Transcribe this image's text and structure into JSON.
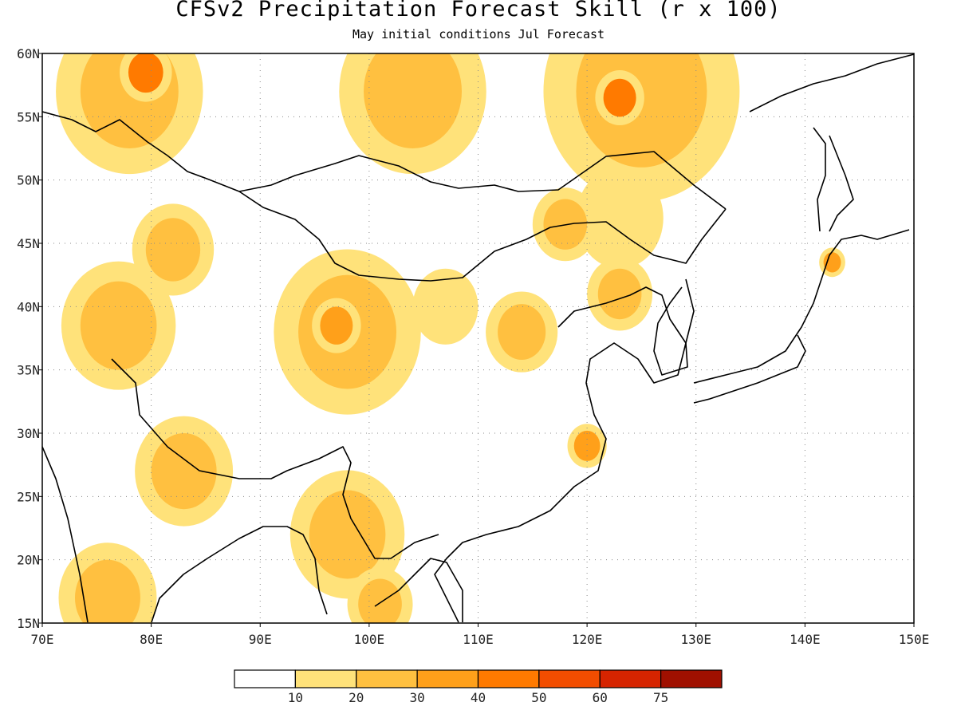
{
  "title": "CFSv2 Precipitation Forecast Skill (r x 100)",
  "subtitle": "May initial conditions  Jul Forecast",
  "map": {
    "lon_range": [
      70,
      150
    ],
    "lat_range": [
      15,
      60
    ],
    "lat_ticks": [
      {
        "value": 60,
        "label": "60N"
      },
      {
        "value": 55,
        "label": "55N"
      },
      {
        "value": 50,
        "label": "50N"
      },
      {
        "value": 45,
        "label": "45N"
      },
      {
        "value": 40,
        "label": "40N"
      },
      {
        "value": 35,
        "label": "35N"
      },
      {
        "value": 30,
        "label": "30N"
      },
      {
        "value": 25,
        "label": "25N"
      },
      {
        "value": 20,
        "label": "20N"
      },
      {
        "value": 15,
        "label": "15N"
      }
    ],
    "lon_ticks": [
      {
        "value": 70,
        "label": "70E"
      },
      {
        "value": 80,
        "label": "80E"
      },
      {
        "value": 90,
        "label": "90E"
      },
      {
        "value": 100,
        "label": "100E"
      },
      {
        "value": 110,
        "label": "110E"
      },
      {
        "value": 120,
        "label": "120E"
      },
      {
        "value": 130,
        "label": "130E"
      },
      {
        "value": 140,
        "label": "140E"
      },
      {
        "value": 150,
        "label": "150E"
      }
    ],
    "grid": "dotted",
    "regions": [
      {
        "name": "w-siberia",
        "lon": 78,
        "lat": 57,
        "r": 4.5,
        "level": 20
      },
      {
        "name": "w-siberia-core",
        "lon": 79.5,
        "lat": 58.5,
        "r": 1.6,
        "level": 40
      },
      {
        "name": "baikal-west",
        "lon": 104,
        "lat": 57,
        "r": 4.5,
        "level": 20
      },
      {
        "name": "mongolia-north",
        "lon": 125,
        "lat": 57,
        "r": 6,
        "level": 20
      },
      {
        "name": "mongolia-north-core",
        "lon": 123,
        "lat": 56.5,
        "r": 1.5,
        "level": 40
      },
      {
        "name": "ne-china",
        "lon": 123,
        "lat": 47,
        "r": 4,
        "level": 10
      },
      {
        "name": "ne-china-core",
        "lon": 118,
        "lat": 46.5,
        "r": 2,
        "level": 20
      },
      {
        "name": "balkhash",
        "lon": 82,
        "lat": 44.5,
        "r": 2.5,
        "level": 20
      },
      {
        "name": "tarim-west",
        "lon": 77,
        "lat": 38.5,
        "r": 3.5,
        "level": 20
      },
      {
        "name": "qaidam",
        "lon": 98,
        "lat": 38,
        "r": 4.5,
        "level": 20
      },
      {
        "name": "qaidam-core",
        "lon": 97,
        "lat": 38.5,
        "r": 1.5,
        "level": 30
      },
      {
        "name": "gansu",
        "lon": 107,
        "lat": 40,
        "r": 3,
        "level": 10
      },
      {
        "name": "north-china",
        "lon": 114,
        "lat": 38,
        "r": 2.2,
        "level": 20
      },
      {
        "name": "bohai",
        "lon": 123,
        "lat": 41,
        "r": 2,
        "level": 20
      },
      {
        "name": "himalaya",
        "lon": 83,
        "lat": 27,
        "r": 3,
        "level": 20
      },
      {
        "name": "myanmar",
        "lon": 98,
        "lat": 22,
        "r": 3.5,
        "level": 20
      },
      {
        "name": "india-south",
        "lon": 76,
        "lat": 17,
        "r": 3,
        "level": 20
      },
      {
        "name": "indochina",
        "lon": 101,
        "lat": 16.5,
        "r": 2,
        "level": 20
      },
      {
        "name": "shanghai",
        "lon": 120,
        "lat": 29,
        "r": 1.2,
        "level": 30
      },
      {
        "name": "hokkaido",
        "lon": 142.5,
        "lat": 43.5,
        "r": 0.8,
        "level": 30
      }
    ]
  },
  "colorbar": {
    "colors": [
      "#ffffff",
      "#ffe27a",
      "#ffc040",
      "#ffa01a",
      "#ff7a00",
      "#f24d00",
      "#d62400",
      "#a01000"
    ],
    "labels": [
      "10",
      "20",
      "30",
      "40",
      "50",
      "60",
      "75"
    ]
  }
}
